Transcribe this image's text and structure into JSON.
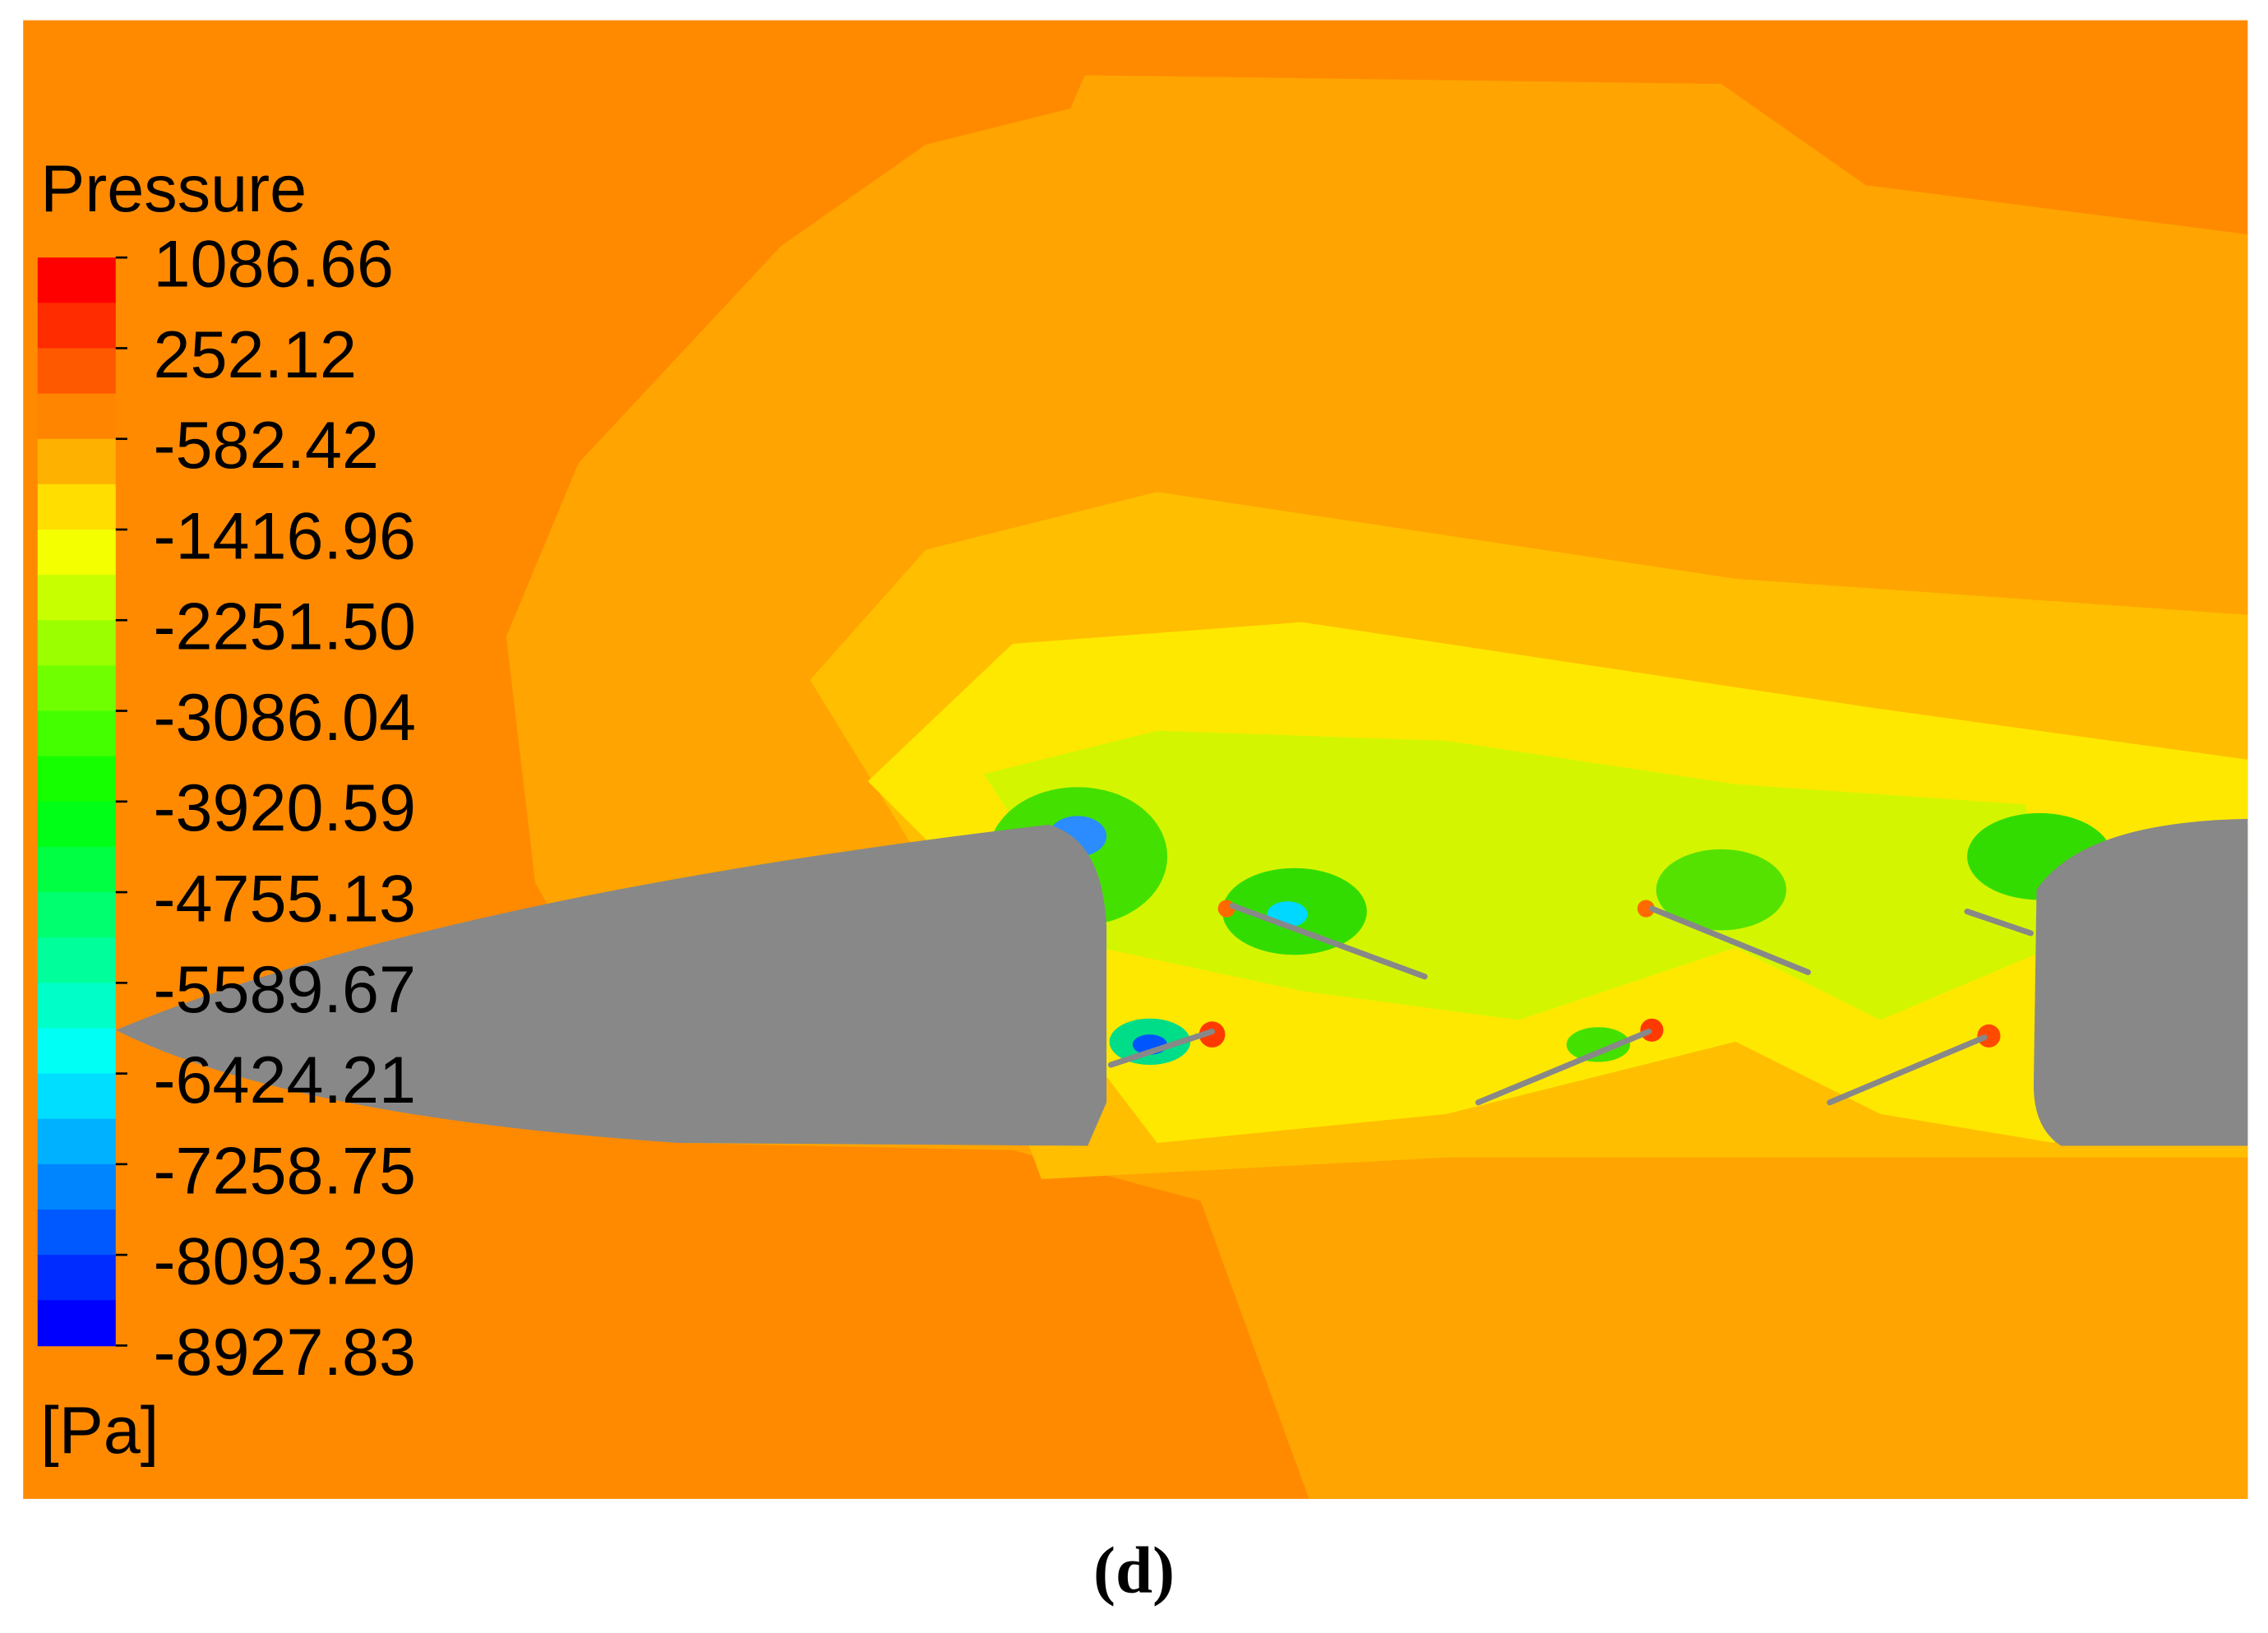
{
  "figure": {
    "legend": {
      "title": "Pressure",
      "unit": "[Pa]",
      "ticks": [
        {
          "value": 1086.66,
          "label": "1086.66"
        },
        {
          "value": 252.12,
          "label": "252.12"
        },
        {
          "value": -582.42,
          "label": "-582.42"
        },
        {
          "value": -1416.96,
          "label": "-1416.96"
        },
        {
          "value": -2251.5,
          "label": "-2251.50"
        },
        {
          "value": -3086.04,
          "label": "-3086.04"
        },
        {
          "value": -3920.59,
          "label": "-3920.59"
        },
        {
          "value": -4755.13,
          "label": "-4755.13"
        },
        {
          "value": -5589.67,
          "label": "-5589.67"
        },
        {
          "value": -6424.21,
          "label": "-6424.21"
        },
        {
          "value": -7258.75,
          "label": "-7258.75"
        },
        {
          "value": -8093.29,
          "label": "-8093.29"
        },
        {
          "value": -8927.83,
          "label": "-8927.83"
        }
      ]
    },
    "caption": "(d)"
  }
}
